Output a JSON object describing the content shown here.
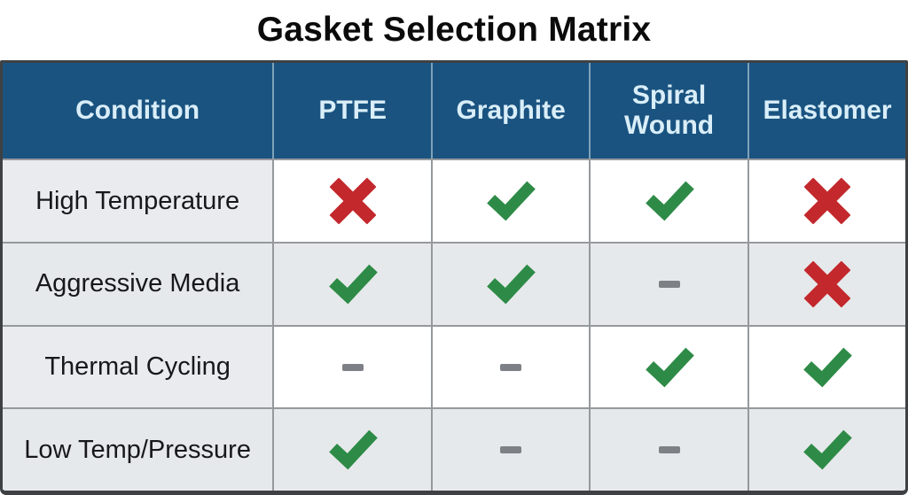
{
  "chart_data": {
    "type": "table",
    "title": "Gasket Selection Matrix",
    "columns": [
      "Condition",
      "PTFE",
      "Graphite",
      "Spiral Wound",
      "Elastomer"
    ],
    "rows": [
      {
        "condition": "High Temperature",
        "marks": [
          "cross",
          "check",
          "check",
          "cross"
        ]
      },
      {
        "condition": "Aggressive Media",
        "marks": [
          "check",
          "check",
          "dash",
          "cross"
        ]
      },
      {
        "condition": "Thermal Cycling",
        "marks": [
          "dash",
          "dash",
          "check",
          "check"
        ]
      },
      {
        "condition": "Low Temp/Pressure",
        "marks": [
          "check",
          "dash",
          "dash",
          "check"
        ]
      }
    ],
    "mark_symbols": {
      "check": "green check",
      "cross": "red x",
      "dash": "gray dash"
    },
    "layout": {
      "header_position": "top",
      "grid": true
    }
  },
  "colors": {
    "header-bg": "#1A5380",
    "header-text": "#D9EEF8",
    "header-line": "#7FA2B9",
    "check-green": "#2E8B47",
    "cross-red": "#C3282C",
    "dash-gray": "#7D8185",
    "row-alt-bg": "#E6E9EB",
    "label-col-bg": "#E9EBEE",
    "grid-line": "#95999D",
    "outer-border": "#3E4144",
    "title-text": "#0B0B0C"
  }
}
